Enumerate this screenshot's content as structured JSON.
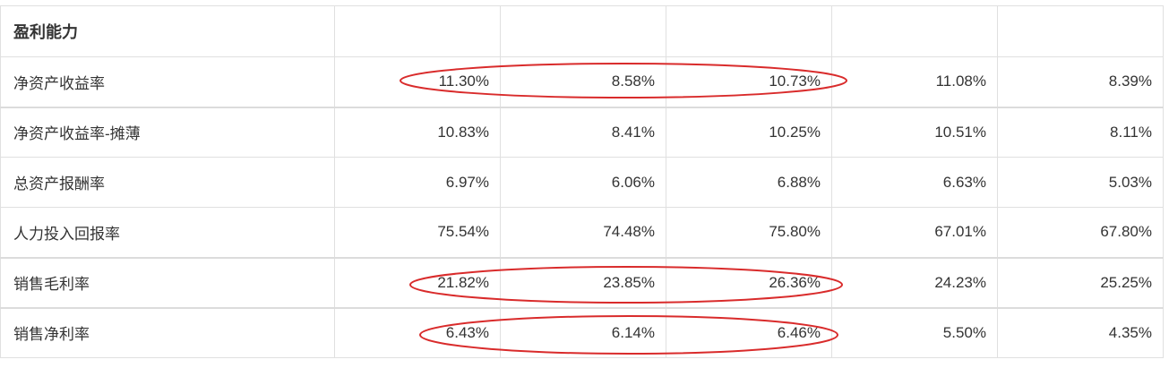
{
  "section_title": "盈利能力",
  "rows": [
    {
      "label": "净资产收益率",
      "values": [
        "11.30%",
        "8.58%",
        "10.73%",
        "11.08%",
        "8.39%"
      ],
      "highlighted": true
    },
    {
      "label": "净资产收益率-摊薄",
      "values": [
        "10.83%",
        "8.41%",
        "10.25%",
        "10.51%",
        "8.11%"
      ],
      "highlighted": false
    },
    {
      "label": "总资产报酬率",
      "values": [
        "6.97%",
        "6.06%",
        "6.88%",
        "6.63%",
        "5.03%"
      ],
      "highlighted": false
    },
    {
      "label": "人力投入回报率",
      "values": [
        "75.54%",
        "74.48%",
        "75.80%",
        "67.01%",
        "67.80%"
      ],
      "highlighted": false
    },
    {
      "label": "销售毛利率",
      "values": [
        "21.82%",
        "23.85%",
        "26.36%",
        "24.23%",
        "25.25%"
      ],
      "highlighted": true
    },
    {
      "label": "销售净利率",
      "values": [
        "6.43%",
        "6.14%",
        "6.46%",
        "5.50%",
        "4.35%"
      ],
      "highlighted": true
    }
  ],
  "colors": {
    "annotation": "#d92b2b",
    "grid": "#e0e0e0"
  }
}
